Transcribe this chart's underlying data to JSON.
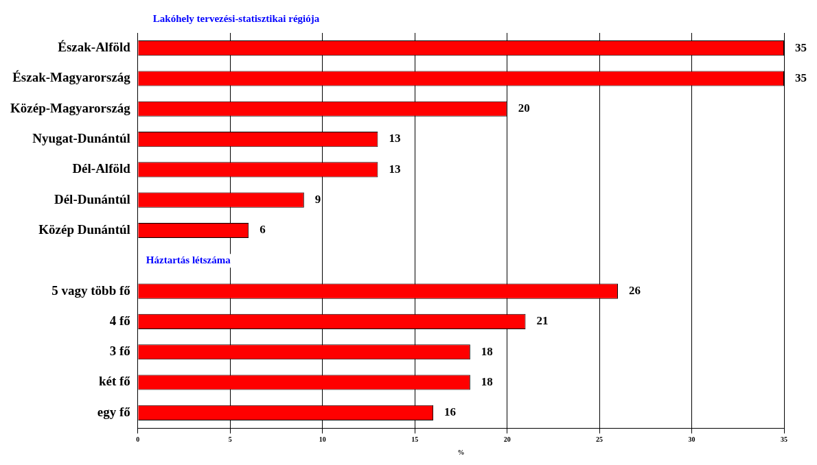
{
  "chart_data": {
    "type": "bar",
    "orientation": "horizontal",
    "title": "Lakóhely tervezési-statisztikai régiója",
    "xlabel": "%",
    "categories": [
      "Észak-Alföld",
      "Észak-Magyarország",
      "Közép-Magyarország",
      "Nyugat-Dunántúl",
      "Dél-Alföld",
      "Dél-Dunántúl",
      "Közép Dunántúl",
      null,
      "5 vagy több fő",
      "4 fő",
      "3 fő",
      "két fő",
      "egy fő"
    ],
    "values": [
      35,
      35,
      20,
      13,
      13,
      9,
      6,
      null,
      26,
      21,
      18,
      18,
      16
    ],
    "color": "#ff0000",
    "xlim": [
      0,
      35
    ],
    "xticks": [
      0,
      5,
      10,
      15,
      20,
      25,
      30,
      35
    ],
    "grid": "x",
    "data_labels": true,
    "legend": false,
    "annotations": [
      "Háztartás létszáma"
    ]
  }
}
